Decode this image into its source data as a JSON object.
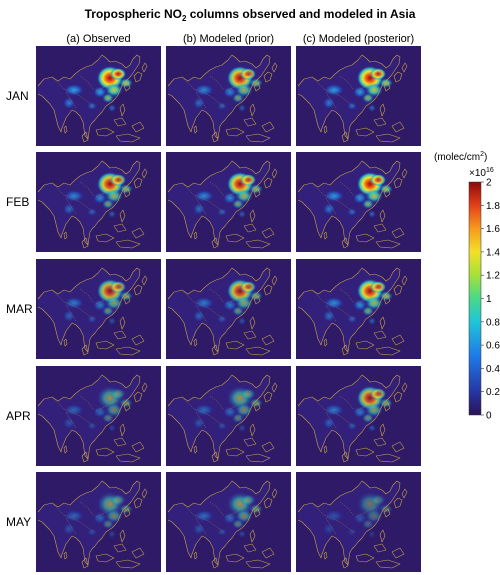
{
  "chart_data": {
    "type": "heatmap",
    "title_main": "Tropospheric NO",
    "title_sub": "2",
    "title_rest": " columns observed and modeled in Asia",
    "columns": [
      "(a) Observed",
      "(b) Modeled (prior)",
      "(c) Modeled (posterior)"
    ],
    "rows": [
      "JAN",
      "FEB",
      "MAR",
      "APR",
      "MAY"
    ],
    "colorbar": {
      "unit_pre": "(molec/cm",
      "unit_sup": "2",
      "unit_post": ")",
      "multiplier_base": "×10",
      "multiplier_exp": "16",
      "range": [
        0,
        2
      ],
      "ticks": [
        "0",
        "0.2",
        "0.4",
        "0.6",
        "0.8",
        "1",
        "1.2",
        "1.4",
        "1.6",
        "1.8",
        "2"
      ],
      "colormap": "jet-like (dark blue to dark red)"
    },
    "panel_intensity": [
      [
        1.0,
        0.8,
        0.95
      ],
      [
        0.8,
        0.82,
        0.92
      ],
      [
        0.7,
        0.72,
        0.85
      ],
      [
        0.55,
        0.58,
        0.7
      ],
      [
        0.55,
        0.58,
        0.4
      ]
    ],
    "colors": {
      "background": "#2e1a66",
      "coastline": "#c8a24a"
    }
  }
}
